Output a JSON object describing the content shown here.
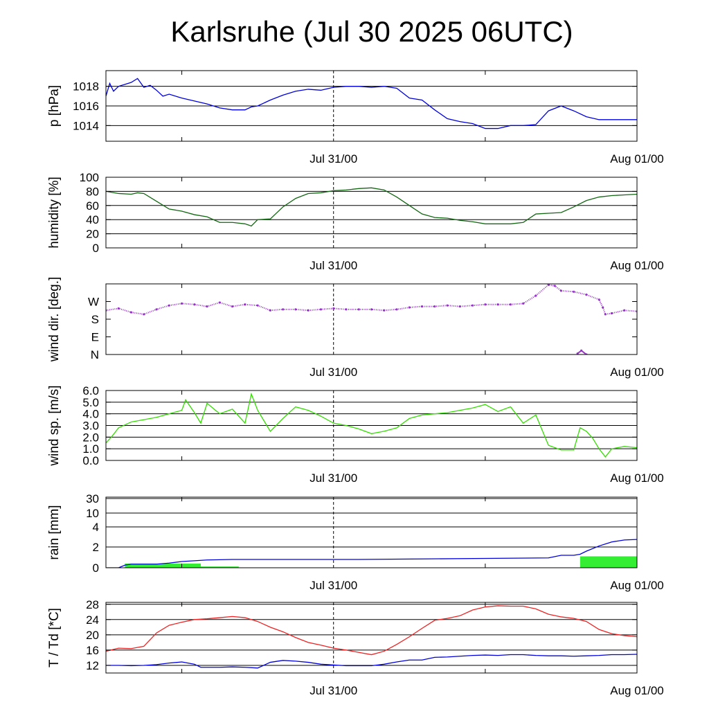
{
  "title": "Karlsruhe (Jul 30 2025 06UTC)",
  "chart_data": [
    {
      "type": "line",
      "ylabel": "p [hPa]",
      "ylim": [
        1012.4,
        1019.6
      ],
      "y_ticks": [
        "1014",
        "1016",
        "1018"
      ],
      "y_tick_values": [
        1014,
        1016,
        1018
      ],
      "x_tick_labels": [
        "Jul 31/00",
        "Aug 01/00"
      ],
      "x_range_hours": [
        0,
        42
      ],
      "grid": true,
      "series": [
        {
          "color": "#0000dd",
          "hours": [
            0,
            0.3,
            0.6,
            1,
            1.5,
            2,
            2.5,
            3,
            3.5,
            4,
            4.5,
            5,
            6,
            7,
            8,
            9,
            10,
            11,
            11.5,
            12,
            13,
            14,
            15,
            16,
            17,
            18,
            19,
            20,
            21,
            22,
            23,
            24,
            25,
            26,
            27,
            28,
            29,
            30,
            31,
            32,
            33,
            34,
            35,
            36,
            37,
            38,
            39,
            40,
            41,
            42
          ],
          "values": [
            1017.0,
            1018.3,
            1017.5,
            1018.0,
            1018.2,
            1018.4,
            1018.8,
            1017.9,
            1018.1,
            1017.6,
            1017.0,
            1017.2,
            1016.8,
            1016.5,
            1016.2,
            1015.8,
            1015.6,
            1015.6,
            1015.9,
            1016.0,
            1016.6,
            1017.1,
            1017.5,
            1017.7,
            1017.6,
            1017.9,
            1018.0,
            1018.0,
            1017.9,
            1018.0,
            1017.8,
            1016.8,
            1016.6,
            1015.6,
            1014.7,
            1014.4,
            1014.2,
            1013.7,
            1013.7,
            1014.0,
            1014.0,
            1014.1,
            1015.5,
            1016.0,
            1015.5,
            1014.9,
            1014.6,
            1014.6,
            1014.6,
            1014.6
          ]
        }
      ]
    },
    {
      "type": "line",
      "ylabel": "humidity [%]",
      "ylim": [
        0,
        100
      ],
      "y_ticks": [
        "0",
        "20",
        "40",
        "60",
        "80",
        "100"
      ],
      "y_tick_values": [
        0,
        20,
        40,
        60,
        80,
        100
      ],
      "x_tick_labels": [
        "Jul 31/00",
        "Aug 01/00"
      ],
      "x_range_hours": [
        0,
        42
      ],
      "grid": true,
      "series": [
        {
          "color": "#116611",
          "hours": [
            0,
            1,
            2,
            2.5,
            3,
            4,
            5,
            6,
            7,
            8,
            9,
            10,
            11,
            11.5,
            12,
            13,
            14,
            15,
            16,
            17,
            18,
            19,
            20,
            21,
            22,
            23,
            24,
            25,
            26,
            27,
            28,
            29,
            30,
            31,
            32,
            33,
            34,
            35,
            36,
            37,
            38,
            39,
            40,
            41,
            42
          ],
          "values": [
            80,
            77,
            76,
            78,
            77,
            66,
            55,
            52,
            47,
            44,
            36,
            36,
            34,
            31,
            40,
            41,
            58,
            70,
            77,
            78,
            81,
            82,
            84,
            85,
            82,
            72,
            60,
            48,
            43,
            42,
            39,
            37,
            34,
            34,
            34,
            36,
            48,
            49,
            50,
            58,
            67,
            72,
            74,
            75,
            76
          ]
        }
      ]
    },
    {
      "type": "scatter",
      "ylabel": "wind dir. [deg.]",
      "ylim": [
        0,
        360
      ],
      "y_ticks": [
        "N",
        "E",
        "S",
        "W"
      ],
      "y_tick_values": [
        0,
        90,
        180,
        270
      ],
      "x_tick_labels": [
        "Jul 31/00",
        "Aug 01/00"
      ],
      "x_range_hours": [
        0,
        42
      ],
      "grid": false,
      "series": [
        {
          "color": "#9933cc",
          "hours": [
            0,
            1,
            2,
            3,
            4,
            5,
            6,
            7,
            8,
            9,
            10,
            11,
            12,
            13,
            14,
            15,
            16,
            17,
            18,
            19,
            20,
            21,
            22,
            23,
            24,
            25,
            26,
            27,
            28,
            29,
            30,
            31,
            32,
            33,
            34,
            35,
            35.5,
            36,
            37,
            38,
            39,
            39.3,
            39.5,
            40,
            41,
            42
          ],
          "values": [
            225,
            235,
            215,
            205,
            230,
            250,
            260,
            255,
            245,
            265,
            245,
            255,
            250,
            225,
            230,
            230,
            225,
            230,
            235,
            230,
            230,
            230,
            225,
            230,
            240,
            245,
            245,
            250,
            245,
            250,
            255,
            255,
            255,
            260,
            300,
            355,
            350,
            325,
            320,
            305,
            280,
            240,
            205,
            210,
            225,
            220
          ]
        },
        {
          "color": "#9933cc",
          "hours": [
            37.3,
            37.6,
            38.0
          ],
          "values": [
            5,
            20,
            0
          ]
        }
      ]
    },
    {
      "type": "line",
      "ylabel": "wind sp. [m/s]",
      "ylim": [
        0,
        6
      ],
      "y_ticks": [
        "0.0",
        "1.0",
        "2.0",
        "3.0",
        "4.0",
        "5.0",
        "6.0"
      ],
      "y_tick_values": [
        0,
        1,
        2,
        3,
        4,
        5,
        6
      ],
      "x_tick_labels": [
        "Jul 31/00",
        "Aug 01/00"
      ],
      "x_range_hours": [
        0,
        42
      ],
      "grid": true,
      "series": [
        {
          "color": "#33dd00",
          "hours": [
            0,
            0.5,
            1,
            2,
            3,
            4,
            5,
            6,
            6.3,
            7,
            7.5,
            8,
            9,
            10,
            11,
            11.5,
            12,
            12.5,
            13,
            14,
            15,
            16,
            17,
            18,
            19,
            20,
            21,
            22,
            23,
            24,
            25,
            26,
            27,
            28,
            29,
            30,
            31,
            32,
            33,
            34,
            35,
            36,
            37,
            37.5,
            38,
            38.5,
            39,
            39.5,
            40,
            41,
            42
          ],
          "values": [
            1.5,
            2.1,
            2.8,
            3.3,
            3.5,
            3.7,
            4.0,
            4.3,
            5.2,
            4.1,
            3.2,
            4.9,
            4.0,
            4.4,
            3.2,
            5.7,
            4.3,
            3.4,
            2.5,
            3.6,
            4.6,
            4.3,
            3.8,
            3.2,
            3.0,
            2.7,
            2.3,
            2.5,
            2.8,
            3.6,
            3.9,
            4.0,
            4.1,
            4.3,
            4.5,
            4.8,
            4.2,
            4.6,
            3.2,
            3.9,
            1.3,
            0.9,
            0.9,
            2.8,
            2.5,
            1.9,
            1.0,
            0.3,
            1.0,
            1.2,
            1.1
          ]
        }
      ]
    },
    {
      "type": "bar",
      "ylabel": "rain [mm]",
      "ylim": [
        0,
        30
      ],
      "y_ticks": [
        "0",
        "2",
        "4",
        "10",
        "30"
      ],
      "y_tick_values": [
        0,
        2,
        4,
        10,
        30
      ],
      "x_tick_labels": [
        "Jul 31/00",
        "Aug 01/00"
      ],
      "x_range_hours": [
        0,
        42
      ],
      "grid": true,
      "bars": [
        {
          "color": "#33ee33",
          "from_hour": 1.5,
          "to_hour": 7.5,
          "value": 0.4
        },
        {
          "color": "#33ee33",
          "from_hour": 7.5,
          "to_hour": 10.5,
          "value": 0.12
        },
        {
          "color": "#33ee33",
          "from_hour": 37.5,
          "to_hour": 42,
          "value": 1.1
        }
      ],
      "series": [
        {
          "color": "#0000dd",
          "hours": [
            0,
            1,
            1.5,
            2,
            4,
            5,
            6,
            8,
            10,
            20,
            25,
            30,
            35,
            36,
            37,
            37.5,
            38,
            39,
            40,
            41,
            42
          ],
          "values": [
            0,
            0,
            0.25,
            0.35,
            0.35,
            0.45,
            0.6,
            0.75,
            0.8,
            0.8,
            0.85,
            0.9,
            0.95,
            1.2,
            1.2,
            1.3,
            1.6,
            2.1,
            2.5,
            2.7,
            2.75
          ]
        }
      ]
    },
    {
      "type": "line",
      "ylabel": "T / Td [*C]",
      "ylim": [
        10,
        28.5
      ],
      "y_ticks": [
        "12",
        "16",
        "20",
        "24",
        "28"
      ],
      "y_tick_values": [
        12,
        16,
        20,
        24,
        28
      ],
      "x_tick_labels": [
        "Jul 31/00",
        "Aug 01/00"
      ],
      "x_range_hours": [
        0,
        42
      ],
      "grid": true,
      "series": [
        {
          "color": "#ee2222",
          "hours": [
            0,
            1,
            2,
            3,
            4,
            5,
            6,
            7,
            8,
            9,
            10,
            11,
            12,
            13,
            14,
            15,
            16,
            17,
            18,
            19,
            20,
            21,
            22,
            23,
            24,
            25,
            26,
            27,
            28,
            29,
            30,
            31,
            32,
            33,
            34,
            35,
            36,
            37,
            38,
            39,
            40,
            41,
            42
          ],
          "values": [
            15.7,
            16.5,
            16.4,
            17.0,
            20.5,
            22.5,
            23.3,
            24.0,
            24.2,
            24.5,
            24.8,
            24.5,
            23.5,
            22.0,
            20.8,
            19.3,
            18.0,
            17.3,
            16.5,
            16.0,
            15.4,
            14.8,
            15.7,
            17.5,
            19.5,
            21.7,
            23.8,
            24.3,
            25.0,
            26.5,
            27.3,
            27.6,
            27.5,
            27.5,
            26.8,
            25.4,
            24.7,
            24.3,
            23.5,
            21.4,
            20.3,
            19.8,
            19.5
          ]
        },
        {
          "color": "#0000dd",
          "hours": [
            0,
            1,
            2,
            3,
            4,
            5,
            6,
            7,
            7.5,
            8,
            9,
            10,
            11,
            12,
            13,
            14,
            15,
            16,
            17,
            18,
            19,
            20,
            21,
            22,
            23,
            24,
            25,
            26,
            27,
            28,
            29,
            30,
            31,
            32,
            33,
            34,
            35,
            36,
            37,
            38,
            39,
            40,
            41,
            42
          ],
          "values": [
            12.0,
            12.0,
            11.9,
            12.0,
            12.2,
            12.6,
            12.9,
            12.3,
            11.5,
            11.5,
            11.5,
            11.6,
            11.5,
            11.3,
            12.8,
            13.3,
            13.1,
            12.8,
            12.3,
            12.1,
            11.9,
            11.9,
            11.9,
            12.3,
            12.9,
            13.4,
            13.4,
            14.1,
            14.2,
            14.4,
            14.6,
            14.7,
            14.6,
            14.8,
            14.8,
            14.6,
            14.5,
            14.5,
            14.4,
            14.5,
            14.6,
            14.8,
            14.8,
            14.9
          ]
        }
      ]
    }
  ]
}
